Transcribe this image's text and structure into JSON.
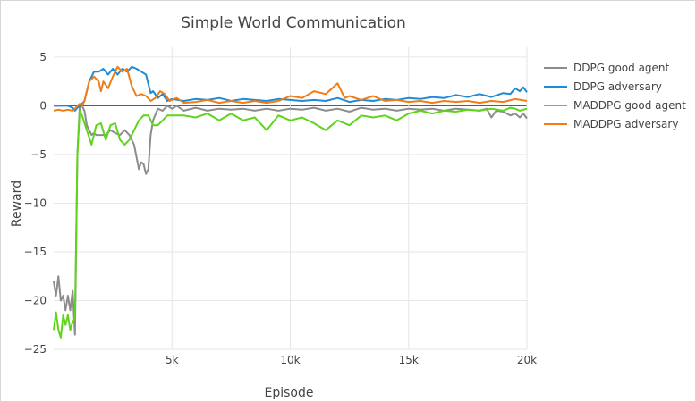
{
  "chart_data": {
    "type": "line",
    "title": "Simple World Communication",
    "xlabel": "Episode",
    "ylabel": "Reward",
    "xlim": [
      0,
      20000
    ],
    "ylim": [
      -25,
      6
    ],
    "x_ticks": [
      5000,
      10000,
      15000,
      20000
    ],
    "x_tick_labels": [
      "5k",
      "10k",
      "15k",
      "20k"
    ],
    "y_ticks": [
      5,
      0,
      -5,
      -10,
      -15,
      -20,
      -25
    ],
    "y_tick_labels": [
      "5",
      "0",
      "−5",
      "−10",
      "−15",
      "−20",
      "−25"
    ],
    "grid": true,
    "legend_position": "right",
    "series": [
      {
        "name": "DDPG good agent",
        "color": "#8c8c8c",
        "points": [
          [
            0,
            -18
          ],
          [
            100,
            -19.5
          ],
          [
            200,
            -17.5
          ],
          [
            300,
            -20
          ],
          [
            400,
            -19.5
          ],
          [
            500,
            -21
          ],
          [
            600,
            -19.5
          ],
          [
            700,
            -21
          ],
          [
            800,
            -19
          ],
          [
            900,
            -23.5
          ],
          [
            1000,
            -5
          ],
          [
            1100,
            0
          ],
          [
            1200,
            0
          ],
          [
            1300,
            -0.5
          ],
          [
            1400,
            -2
          ],
          [
            1500,
            -2.5
          ],
          [
            1600,
            -3
          ],
          [
            1700,
            -2.8
          ],
          [
            1800,
            -3
          ],
          [
            1900,
            -3
          ],
          [
            2000,
            -3
          ],
          [
            2200,
            -3
          ],
          [
            2400,
            -2.5
          ],
          [
            2600,
            -2.8
          ],
          [
            2800,
            -3
          ],
          [
            3000,
            -2.5
          ],
          [
            3200,
            -3
          ],
          [
            3400,
            -4
          ],
          [
            3600,
            -6.5
          ],
          [
            3700,
            -5.8
          ],
          [
            3800,
            -6
          ],
          [
            3900,
            -7
          ],
          [
            4000,
            -6.5
          ],
          [
            4100,
            -3
          ],
          [
            4200,
            -1.5
          ],
          [
            4400,
            -0.3
          ],
          [
            4600,
            -0.5
          ],
          [
            4800,
            0
          ],
          [
            5000,
            -0.3
          ],
          [
            5200,
            0
          ],
          [
            5500,
            -0.5
          ],
          [
            6000,
            -0.2
          ],
          [
            6500,
            -0.5
          ],
          [
            7000,
            -0.3
          ],
          [
            7500,
            -0.4
          ],
          [
            8000,
            -0.3
          ],
          [
            8500,
            -0.5
          ],
          [
            9000,
            -0.3
          ],
          [
            9500,
            -0.5
          ],
          [
            10000,
            -0.3
          ],
          [
            10500,
            -0.4
          ],
          [
            11000,
            -0.2
          ],
          [
            11500,
            -0.5
          ],
          [
            12000,
            -0.3
          ],
          [
            12500,
            -0.6
          ],
          [
            13000,
            -0.2
          ],
          [
            13500,
            -0.4
          ],
          [
            14000,
            -0.3
          ],
          [
            14500,
            -0.5
          ],
          [
            15000,
            -0.3
          ],
          [
            15500,
            -0.4
          ],
          [
            16000,
            -0.3
          ],
          [
            16500,
            -0.5
          ],
          [
            17000,
            -0.3
          ],
          [
            17500,
            -0.4
          ],
          [
            18000,
            -0.5
          ],
          [
            18300,
            -0.3
          ],
          [
            18500,
            -1.2
          ],
          [
            18700,
            -0.5
          ],
          [
            19000,
            -0.6
          ],
          [
            19300,
            -1
          ],
          [
            19500,
            -0.8
          ],
          [
            19700,
            -1.2
          ],
          [
            19850,
            -0.8
          ],
          [
            20000,
            -1.3
          ]
        ]
      },
      {
        "name": "DDPG adversary",
        "color": "#1f8ad6",
        "points": [
          [
            0,
            0
          ],
          [
            200,
            0
          ],
          [
            400,
            0
          ],
          [
            600,
            0
          ],
          [
            800,
            -0.2
          ],
          [
            900,
            -0.5
          ],
          [
            1000,
            -0.2
          ],
          [
            1100,
            0
          ],
          [
            1200,
            0.2
          ],
          [
            1300,
            0.5
          ],
          [
            1500,
            2.5
          ],
          [
            1700,
            3.5
          ],
          [
            1900,
            3.5
          ],
          [
            2100,
            3.8
          ],
          [
            2300,
            3.2
          ],
          [
            2500,
            3.8
          ],
          [
            2700,
            3.2
          ],
          [
            2900,
            3.8
          ],
          [
            3100,
            3.5
          ],
          [
            3300,
            4
          ],
          [
            3500,
            3.8
          ],
          [
            3700,
            3.5
          ],
          [
            3900,
            3.2
          ],
          [
            4100,
            1.3
          ],
          [
            4200,
            1.5
          ],
          [
            4400,
            0.8
          ],
          [
            4600,
            1.2
          ],
          [
            4800,
            0.5
          ],
          [
            5000,
            0.7
          ],
          [
            5500,
            0.5
          ],
          [
            6000,
            0.7
          ],
          [
            6500,
            0.6
          ],
          [
            7000,
            0.8
          ],
          [
            7500,
            0.5
          ],
          [
            8000,
            0.7
          ],
          [
            8500,
            0.6
          ],
          [
            9000,
            0.5
          ],
          [
            9500,
            0.7
          ],
          [
            10000,
            0.6
          ],
          [
            10500,
            0.5
          ],
          [
            11000,
            0.6
          ],
          [
            11500,
            0.5
          ],
          [
            12000,
            0.8
          ],
          [
            12500,
            0.4
          ],
          [
            13000,
            0.6
          ],
          [
            13500,
            0.5
          ],
          [
            14000,
            0.7
          ],
          [
            14500,
            0.6
          ],
          [
            15000,
            0.8
          ],
          [
            15500,
            0.7
          ],
          [
            16000,
            0.9
          ],
          [
            16500,
            0.8
          ],
          [
            17000,
            1.1
          ],
          [
            17500,
            0.9
          ],
          [
            18000,
            1.2
          ],
          [
            18500,
            0.9
          ],
          [
            19000,
            1.3
          ],
          [
            19300,
            1.2
          ],
          [
            19500,
            1.8
          ],
          [
            19700,
            1.5
          ],
          [
            19850,
            1.9
          ],
          [
            20000,
            1.4
          ]
        ]
      },
      {
        "name": "MADDPG good agent",
        "color": "#5ed41a",
        "points": [
          [
            0,
            -23
          ],
          [
            100,
            -21.2
          ],
          [
            200,
            -23
          ],
          [
            300,
            -23.8
          ],
          [
            400,
            -21.5
          ],
          [
            500,
            -22.5
          ],
          [
            600,
            -21.5
          ],
          [
            700,
            -23
          ],
          [
            800,
            -22.2
          ],
          [
            900,
            -21.8
          ],
          [
            1000,
            -5
          ],
          [
            1100,
            -0.5
          ],
          [
            1200,
            -1
          ],
          [
            1400,
            -2.5
          ],
          [
            1600,
            -4
          ],
          [
            1800,
            -2
          ],
          [
            2000,
            -1.8
          ],
          [
            2200,
            -3.5
          ],
          [
            2400,
            -2
          ],
          [
            2600,
            -1.8
          ],
          [
            2800,
            -3.5
          ],
          [
            3000,
            -4
          ],
          [
            3200,
            -3.5
          ],
          [
            3400,
            -2.5
          ],
          [
            3600,
            -1.5
          ],
          [
            3800,
            -1
          ],
          [
            4000,
            -1
          ],
          [
            4200,
            -2
          ],
          [
            4400,
            -2
          ],
          [
            4600,
            -1.5
          ],
          [
            4800,
            -1
          ],
          [
            5000,
            -1
          ],
          [
            5500,
            -1
          ],
          [
            6000,
            -1.2
          ],
          [
            6500,
            -0.8
          ],
          [
            7000,
            -1.5
          ],
          [
            7500,
            -0.8
          ],
          [
            8000,
            -1.5
          ],
          [
            8500,
            -1.2
          ],
          [
            9000,
            -2.5
          ],
          [
            9500,
            -1
          ],
          [
            10000,
            -1.5
          ],
          [
            10500,
            -1.2
          ],
          [
            11000,
            -1.8
          ],
          [
            11500,
            -2.5
          ],
          [
            12000,
            -1.5
          ],
          [
            12500,
            -2
          ],
          [
            13000,
            -1
          ],
          [
            13500,
            -1.2
          ],
          [
            14000,
            -1
          ],
          [
            14500,
            -1.5
          ],
          [
            15000,
            -0.8
          ],
          [
            15500,
            -0.5
          ],
          [
            16000,
            -0.8
          ],
          [
            16500,
            -0.5
          ],
          [
            17000,
            -0.6
          ],
          [
            17500,
            -0.4
          ],
          [
            18000,
            -0.5
          ],
          [
            18500,
            -0.3
          ],
          [
            19000,
            -0.5
          ],
          [
            19300,
            -0.2
          ],
          [
            19500,
            -0.3
          ],
          [
            19700,
            -0.5
          ],
          [
            20000,
            -0.3
          ]
        ]
      },
      {
        "name": "MADDPG adversary",
        "color": "#f07d17",
        "points": [
          [
            0,
            -0.5
          ],
          [
            200,
            -0.4
          ],
          [
            400,
            -0.5
          ],
          [
            600,
            -0.4
          ],
          [
            800,
            -0.5
          ],
          [
            900,
            -0.3
          ],
          [
            1000,
            0
          ],
          [
            1100,
            0.2
          ],
          [
            1200,
            0
          ],
          [
            1300,
            0.5
          ],
          [
            1400,
            1.5
          ],
          [
            1500,
            2.5
          ],
          [
            1700,
            3
          ],
          [
            1900,
            2.5
          ],
          [
            2000,
            1.5
          ],
          [
            2100,
            2.5
          ],
          [
            2300,
            1.8
          ],
          [
            2500,
            3
          ],
          [
            2700,
            4
          ],
          [
            2900,
            3.5
          ],
          [
            3100,
            3.8
          ],
          [
            3300,
            2
          ],
          [
            3500,
            1
          ],
          [
            3700,
            1.2
          ],
          [
            3900,
            1
          ],
          [
            4100,
            0.5
          ],
          [
            4300,
            0.8
          ],
          [
            4500,
            1.5
          ],
          [
            4700,
            1.2
          ],
          [
            4900,
            0.5
          ],
          [
            5200,
            0.8
          ],
          [
            5500,
            0.3
          ],
          [
            6000,
            0.4
          ],
          [
            6500,
            0.6
          ],
          [
            7000,
            0.3
          ],
          [
            7500,
            0.5
          ],
          [
            8000,
            0.3
          ],
          [
            8500,
            0.5
          ],
          [
            9000,
            0.3
          ],
          [
            9500,
            0.5
          ],
          [
            10000,
            1
          ],
          [
            10500,
            0.8
          ],
          [
            11000,
            1.5
          ],
          [
            11500,
            1.2
          ],
          [
            12000,
            2.3
          ],
          [
            12300,
            0.8
          ],
          [
            12500,
            1
          ],
          [
            13000,
            0.6
          ],
          [
            13500,
            1
          ],
          [
            14000,
            0.5
          ],
          [
            14500,
            0.6
          ],
          [
            15000,
            0.4
          ],
          [
            15500,
            0.5
          ],
          [
            16000,
            0.3
          ],
          [
            16500,
            0.5
          ],
          [
            17000,
            0.4
          ],
          [
            17500,
            0.5
          ],
          [
            18000,
            0.3
          ],
          [
            18500,
            0.5
          ],
          [
            19000,
            0.4
          ],
          [
            19500,
            0.7
          ],
          [
            20000,
            0.5
          ]
        ]
      }
    ]
  }
}
